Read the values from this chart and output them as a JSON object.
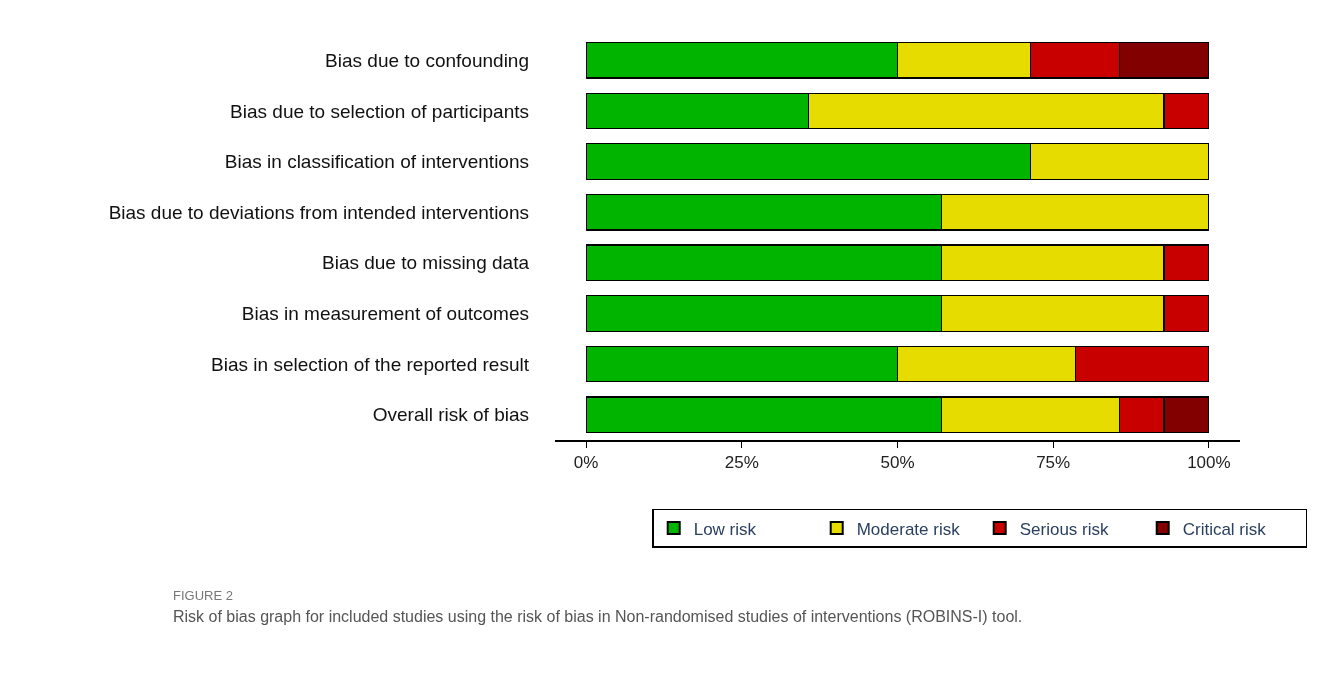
{
  "chart_data": {
    "type": "bar",
    "orientation": "horizontal",
    "stacked": true,
    "categories": [
      "Bias due to confounding",
      "Bias due to selection of participants",
      "Bias in classification of interventions",
      "Bias due to deviations from intended interventions",
      "Bias due to missing data",
      "Bias in measurement of outcomes",
      "Bias in selection of the reported result",
      "Overall risk of bias"
    ],
    "series": [
      {
        "name": "Low risk",
        "color": "#00b400",
        "values": [
          50,
          35.7,
          71.4,
          57.1,
          57.1,
          57.1,
          50,
          57.1
        ]
      },
      {
        "name": "Moderate risk",
        "color": "#e6dc00",
        "values": [
          21.4,
          57.1,
          28.6,
          42.9,
          35.7,
          35.7,
          28.6,
          28.6
        ]
      },
      {
        "name": "Serious risk",
        "color": "#c80000",
        "values": [
          14.3,
          7.1,
          null,
          null,
          7.1,
          7.1,
          21.4,
          7.1
        ]
      },
      {
        "name": "Critical risk",
        "color": "#820000",
        "values": [
          14.3,
          null,
          null,
          null,
          null,
          null,
          null,
          7.1
        ]
      }
    ],
    "xlim": [
      -5,
      105
    ],
    "xticks": [
      {
        "value": 0,
        "label": "0%"
      },
      {
        "value": 25,
        "label": "25%"
      },
      {
        "value": 50,
        "label": "50%"
      },
      {
        "value": 75,
        "label": "75%"
      },
      {
        "value": 100,
        "label": "100%"
      }
    ],
    "legend": "bottom",
    "annotations": [
      "FIGURE 2",
      "Risk of bias graph for included studies using the risk of bias in Non-randomised studies of interventions (ROBINS-I) tool."
    ]
  }
}
